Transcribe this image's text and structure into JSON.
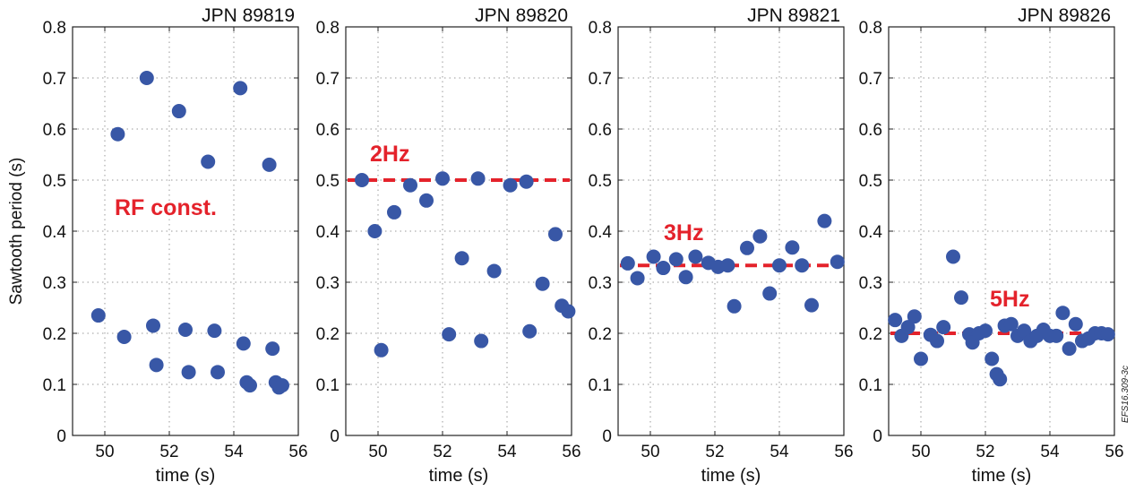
{
  "figure_id": "EFS16.309-3c",
  "colors": {
    "points": "#3857a6",
    "reference": "#e4222b",
    "annotation": "#e4222b"
  },
  "chart_data": [
    {
      "type": "scatter",
      "title": "JPN 89819",
      "xlabel": "time (s)",
      "ylabel": "Sawtooth period (s)",
      "xlim": [
        49,
        56
      ],
      "ylim": [
        0,
        0.8
      ],
      "xticks": [
        50,
        52,
        54,
        56
      ],
      "yticks": [
        0,
        0.1,
        0.2,
        0.3,
        0.4,
        0.5,
        0.6,
        0.7,
        0.8
      ],
      "grid": true,
      "annotation": "RF const.",
      "reference_line": null,
      "x": [
        49.8,
        50.4,
        50.6,
        51.3,
        51.5,
        51.6,
        52.3,
        52.5,
        52.6,
        53.2,
        53.4,
        53.5,
        54.2,
        54.3,
        54.4,
        54.5,
        55.1,
        55.2,
        55.3,
        55.4,
        55.5
      ],
      "y": [
        0.235,
        0.59,
        0.193,
        0.7,
        0.215,
        0.138,
        0.635,
        0.207,
        0.124,
        0.536,
        0.205,
        0.124,
        0.68,
        0.18,
        0.104,
        0.098,
        0.53,
        0.17,
        0.104,
        0.094,
        0.098
      ]
    },
    {
      "type": "scatter",
      "title": "JPN 89820",
      "xlabel": "time (s)",
      "xlim": [
        49,
        56
      ],
      "ylim": [
        0,
        0.8
      ],
      "xticks": [
        50,
        52,
        54,
        56
      ],
      "yticks": [
        0,
        0.1,
        0.2,
        0.3,
        0.4,
        0.5,
        0.6,
        0.7,
        0.8
      ],
      "grid": true,
      "annotation": "2Hz",
      "reference_line": 0.5,
      "x": [
        49.5,
        49.9,
        50.1,
        50.5,
        51.0,
        51.5,
        52.0,
        52.2,
        52.6,
        53.1,
        53.2,
        53.6,
        54.1,
        54.6,
        54.7,
        55.1,
        55.5,
        55.7,
        55.9
      ],
      "y": [
        0.5,
        0.4,
        0.167,
        0.437,
        0.49,
        0.46,
        0.503,
        0.198,
        0.347,
        0.503,
        0.185,
        0.322,
        0.49,
        0.497,
        0.204,
        0.297,
        0.394,
        0.254,
        0.243
      ]
    },
    {
      "type": "scatter",
      "title": "JPN 89821",
      "xlabel": "time (s)",
      "xlim": [
        49,
        56
      ],
      "ylim": [
        0,
        0.8
      ],
      "xticks": [
        50,
        52,
        54,
        56
      ],
      "yticks": [
        0,
        0.1,
        0.2,
        0.3,
        0.4,
        0.5,
        0.6,
        0.7,
        0.8
      ],
      "grid": true,
      "annotation": "3Hz",
      "reference_line": 0.333,
      "x": [
        49.3,
        49.6,
        50.1,
        50.4,
        50.8,
        51.1,
        51.4,
        51.8,
        52.1,
        52.4,
        52.6,
        53.0,
        53.4,
        53.7,
        54.0,
        54.4,
        54.7,
        55.0,
        55.4,
        55.8
      ],
      "y": [
        0.337,
        0.308,
        0.35,
        0.328,
        0.345,
        0.31,
        0.35,
        0.338,
        0.33,
        0.333,
        0.253,
        0.367,
        0.39,
        0.278,
        0.333,
        0.368,
        0.333,
        0.255,
        0.42,
        0.34
      ]
    },
    {
      "type": "scatter",
      "title": "JPN 89826",
      "xlabel": "time (s)",
      "xlim": [
        49,
        56
      ],
      "ylim": [
        0,
        0.8
      ],
      "xticks": [
        50,
        52,
        54,
        56
      ],
      "yticks": [
        0,
        0.1,
        0.2,
        0.3,
        0.4,
        0.5,
        0.6,
        0.7,
        0.8
      ],
      "grid": true,
      "annotation": "5Hz",
      "reference_line": 0.2,
      "x": [
        49.2,
        49.4,
        49.6,
        49.8,
        50.0,
        50.3,
        50.5,
        50.7,
        51.0,
        51.25,
        51.5,
        51.6,
        51.8,
        52.0,
        52.2,
        52.35,
        52.45,
        52.6,
        52.8,
        53.0,
        53.2,
        53.4,
        53.6,
        53.8,
        54.0,
        54.2,
        54.4,
        54.6,
        54.8,
        55.0,
        55.2,
        55.4,
        55.6,
        55.8
      ],
      "y": [
        0.226,
        0.195,
        0.212,
        0.233,
        0.15,
        0.197,
        0.185,
        0.212,
        0.35,
        0.27,
        0.198,
        0.182,
        0.2,
        0.205,
        0.15,
        0.12,
        0.11,
        0.215,
        0.218,
        0.195,
        0.205,
        0.185,
        0.195,
        0.207,
        0.195,
        0.195,
        0.24,
        0.17,
        0.218,
        0.185,
        0.19,
        0.2,
        0.2,
        0.198
      ]
    }
  ]
}
